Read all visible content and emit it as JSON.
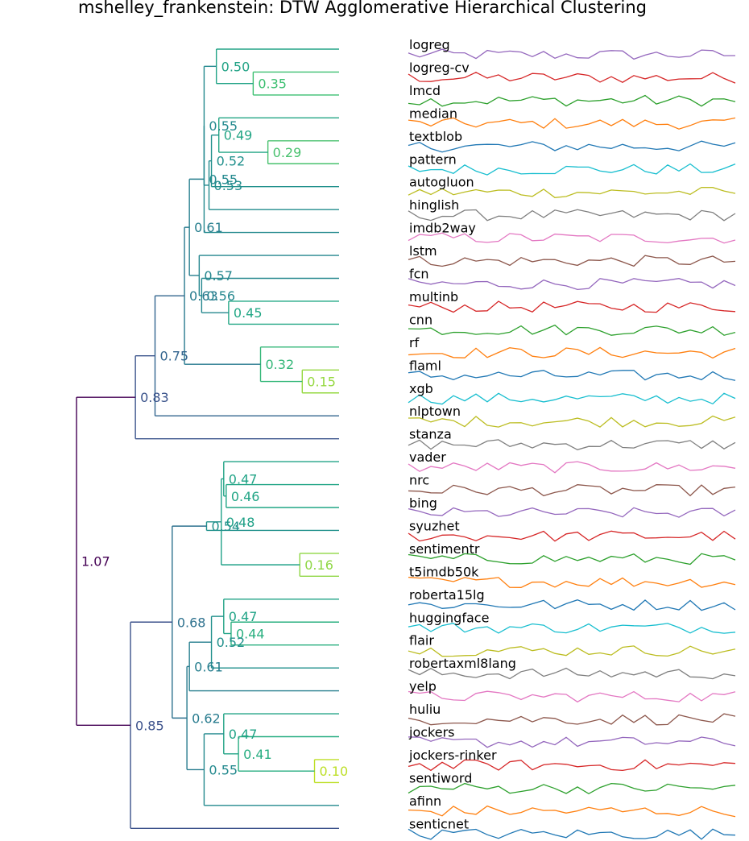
{
  "chart_data": {
    "type": "dendrogram",
    "title": "mshelley_frankenstein: DTW Agglomerative Hierarchical Clustering",
    "leaves": [
      "logreg",
      "logreg-cv",
      "lmcd",
      "median",
      "textblob",
      "pattern",
      "autogluon",
      "hinglish",
      "imdb2way",
      "lstm",
      "fcn",
      "multinb",
      "cnn",
      "rf",
      "flaml",
      "xgb",
      "nlptown",
      "stanza",
      "vader",
      "nrc",
      "bing",
      "syuzhet",
      "sentimentr",
      "t5imdb50k",
      "roberta15lg",
      "huggingface",
      "flair",
      "robertaxml8lang",
      "yelp",
      "huliu",
      "jockers",
      "jockers-rinker",
      "sentiword",
      "afinn",
      "senticnet"
    ],
    "merges": [
      {
        "a": "L1",
        "b": "L2",
        "height": 0.35,
        "label": "0.35",
        "color": "#3bbf70"
      },
      {
        "a": "L0",
        "b": "M0",
        "height": 0.5,
        "label": "0.50",
        "color": "#22a386"
      },
      {
        "a": "L4",
        "b": "L5",
        "height": 0.29,
        "label": "0.29",
        "color": "#48c16e"
      },
      {
        "a": "L3",
        "b": "M2",
        "height": 0.49,
        "label": "0.49",
        "color": "#23a585"
      },
      {
        "a": "M3",
        "b": "L6",
        "height": 0.52,
        "label": "0.52",
        "color": "#21908c"
      },
      {
        "a": "M4",
        "b": "L7",
        "height": 0.53,
        "label": "0.53",
        "color": "#228c8d"
      },
      {
        "a": "M1",
        "b": "M5",
        "height": 0.55,
        "label": "0.55",
        "color": "#23898e"
      },
      {
        "a": "M6",
        "b": "L8",
        "height": 0.55,
        "label": "0.55",
        "color": "#23898e"
      },
      {
        "a": "L11",
        "b": "L12",
        "height": 0.45,
        "label": "0.45",
        "color": "#22a785"
      },
      {
        "a": "L10",
        "b": "M8",
        "height": 0.56,
        "label": "0.56",
        "color": "#24878e"
      },
      {
        "a": "L9",
        "b": "M9",
        "height": 0.57,
        "label": "0.57",
        "color": "#24868e"
      },
      {
        "a": "M7",
        "b": "M10",
        "height": 0.61,
        "label": "0.61",
        "color": "#267e8e"
      },
      {
        "a": "L14",
        "b": "L15",
        "height": 0.15,
        "label": "0.15",
        "color": "#95d840"
      },
      {
        "a": "L13",
        "b": "M12",
        "height": 0.32,
        "label": "0.32",
        "color": "#35b779"
      },
      {
        "a": "M11",
        "b": "M13",
        "height": 0.63,
        "label": "0.63",
        "color": "#277a8e"
      },
      {
        "a": "M14",
        "b": "L16",
        "height": 0.75,
        "label": "0.75",
        "color": "#32648e"
      },
      {
        "a": "M15",
        "b": "L17",
        "height": 0.83,
        "label": "0.83",
        "color": "#3a538b"
      },
      {
        "a": "L19",
        "b": "L20",
        "height": 0.46,
        "label": "0.46",
        "color": "#21a585"
      },
      {
        "a": "L18",
        "b": "M17",
        "height": 0.47,
        "label": "0.47",
        "color": "#20a386"
      },
      {
        "a": "L22",
        "b": "L23",
        "height": 0.16,
        "label": "0.16",
        "color": "#8fd744"
      },
      {
        "a": "M18",
        "b": "M19",
        "height": 0.48,
        "label": "0.48",
        "color": "#1fa187"
      },
      {
        "a": "M20",
        "b": "L21",
        "height": 0.54,
        "label": "0.54",
        "color": "#21918c"
      },
      {
        "a": "L25",
        "b": "L26",
        "height": 0.44,
        "label": "0.44",
        "color": "#29af7f"
      },
      {
        "a": "L24",
        "b": "M22",
        "height": 0.47,
        "label": "0.47",
        "color": "#20a386"
      },
      {
        "a": "M23",
        "b": "L27",
        "height": 0.52,
        "label": "0.52",
        "color": "#21908c"
      },
      {
        "a": "M24",
        "b": "L28",
        "height": 0.61,
        "label": "0.61",
        "color": "#267e8e"
      },
      {
        "a": "L31",
        "b": "L32",
        "height": 0.1,
        "label": "0.10",
        "color": "#bddf26"
      },
      {
        "a": "L30",
        "b": "M26",
        "height": 0.41,
        "label": "0.41",
        "color": "#27ad81"
      },
      {
        "a": "M27",
        "b": "L29",
        "height": 0.47,
        "label": "0.47",
        "color": "#20a386"
      },
      {
        "a": "M28",
        "b": "L33",
        "height": 0.55,
        "label": "0.55",
        "color": "#23898e"
      },
      {
        "a": "M25",
        "b": "M29",
        "height": 0.62,
        "label": "0.62",
        "color": "#277b8e"
      },
      {
        "a": "M21",
        "b": "M30",
        "height": 0.68,
        "label": "0.68",
        "color": "#2d718e"
      },
      {
        "a": "M31",
        "b": "L34",
        "height": 0.85,
        "label": "0.85",
        "color": "#3b518b"
      },
      {
        "a": "M16",
        "b": "M32",
        "height": 1.07,
        "label": "1.07",
        "color": "#440154"
      }
    ],
    "series_colors": [
      "#9467bd",
      "#d62728",
      "#2ca02c",
      "#ff7f0e",
      "#1f77b4",
      "#17becf",
      "#bcbd22",
      "#7f7f7f",
      "#e377c2",
      "#8c564b"
    ],
    "series_points": 30,
    "series_note": "Each leaf has a small sentiment time-series sparkline drawn to the right of its label."
  }
}
